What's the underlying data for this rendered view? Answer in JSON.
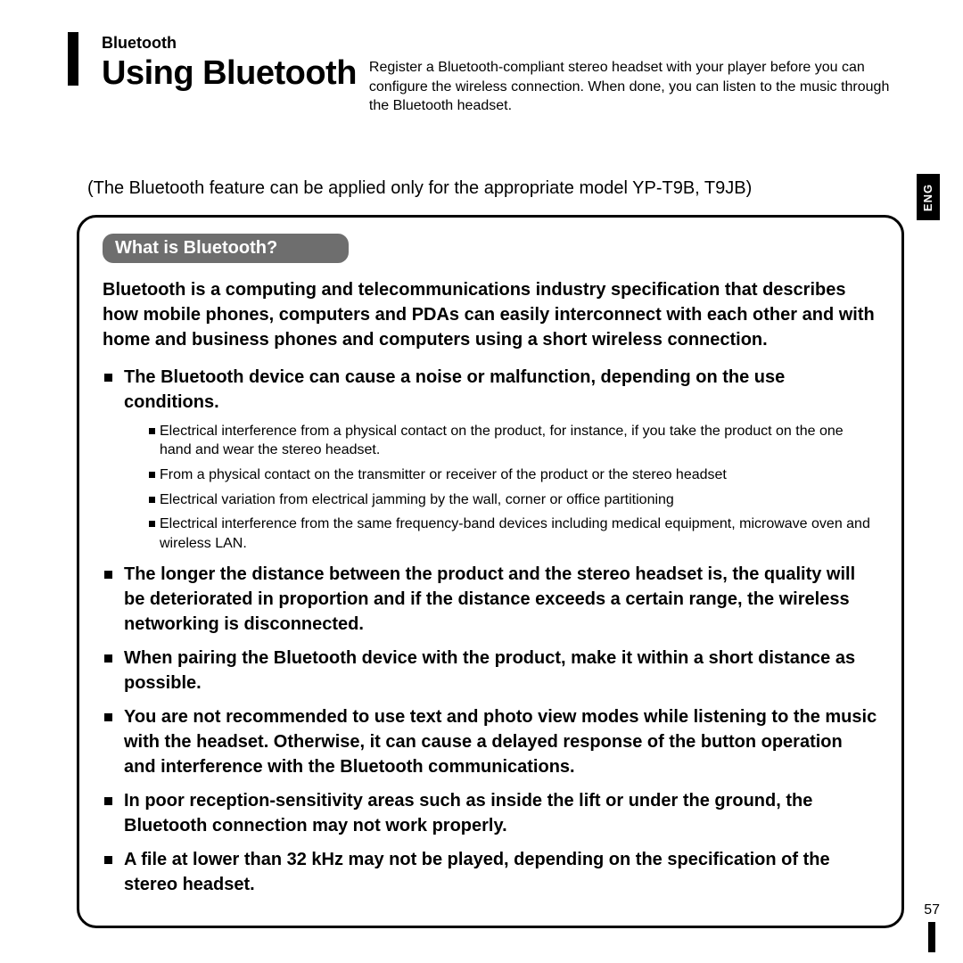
{
  "header": {
    "section_label": "Bluetooth",
    "title": "Using Bluetooth",
    "lead": "Register a Bluetooth-compliant stereo headset with your player before you can configure the wireless connection. When done, you can listen to the music through the Bluetooth headset."
  },
  "model_note": "(The Bluetooth feature can be applied only for the appropriate model YP-T9B, T9JB)",
  "box": {
    "pill": "What is Bluetooth?",
    "intro": "Bluetooth is a computing and telecommunications industry specification that describes how mobile phones, computers and PDAs can easily interconnect with each other and with home and business phones and computers using a short wireless connection.",
    "b1": {
      "text": "The Bluetooth device can cause a noise or malfunction, depending on the use conditions.",
      "s1": "Electrical interference from a physical contact on the product, for instance, if you take the product on the one hand and wear the stereo headset.",
      "s2": "From a physical contact on the transmitter or receiver of the product or the stereo headset",
      "s3": "Electrical variation from electrical jamming by the wall, corner or office partitioning",
      "s4": "Electrical interference from the same frequency-band devices including medical equipment, microwave oven and wireless LAN."
    },
    "b2": "The longer the distance between the product and the stereo headset is, the quality will be deteriorated in proportion and if the distance exceeds a certain range, the wireless networking is disconnected.",
    "b3": "When pairing the Bluetooth device with the product, make it within a short distance as possible.",
    "b4": "You are not recommended to use text and photo view modes while listening to the music with the headset. Otherwise, it can cause a delayed response of the button operation and interference with the Bluetooth communications.",
    "b5": "In poor reception-sensitivity areas such as inside the lift or under the ground, the Bluetooth connection may not work properly.",
    "b6": "A file at lower than 32 kHz may not be played, depending on the specification of the stereo headset."
  },
  "side": {
    "lang": "ENG",
    "page_number": "57"
  },
  "style": {
    "page_bg": "#ffffff",
    "text_color": "#000000",
    "pill_bg": "#6e6e6e",
    "pill_fg": "#ffffff",
    "tab_bg": "#000000",
    "tab_fg": "#ffffff",
    "box_border": "#000000",
    "title_fontsize": 38,
    "body_bold_fontsize": 20,
    "sub_fontsize": 16,
    "box_radius": 22
  }
}
